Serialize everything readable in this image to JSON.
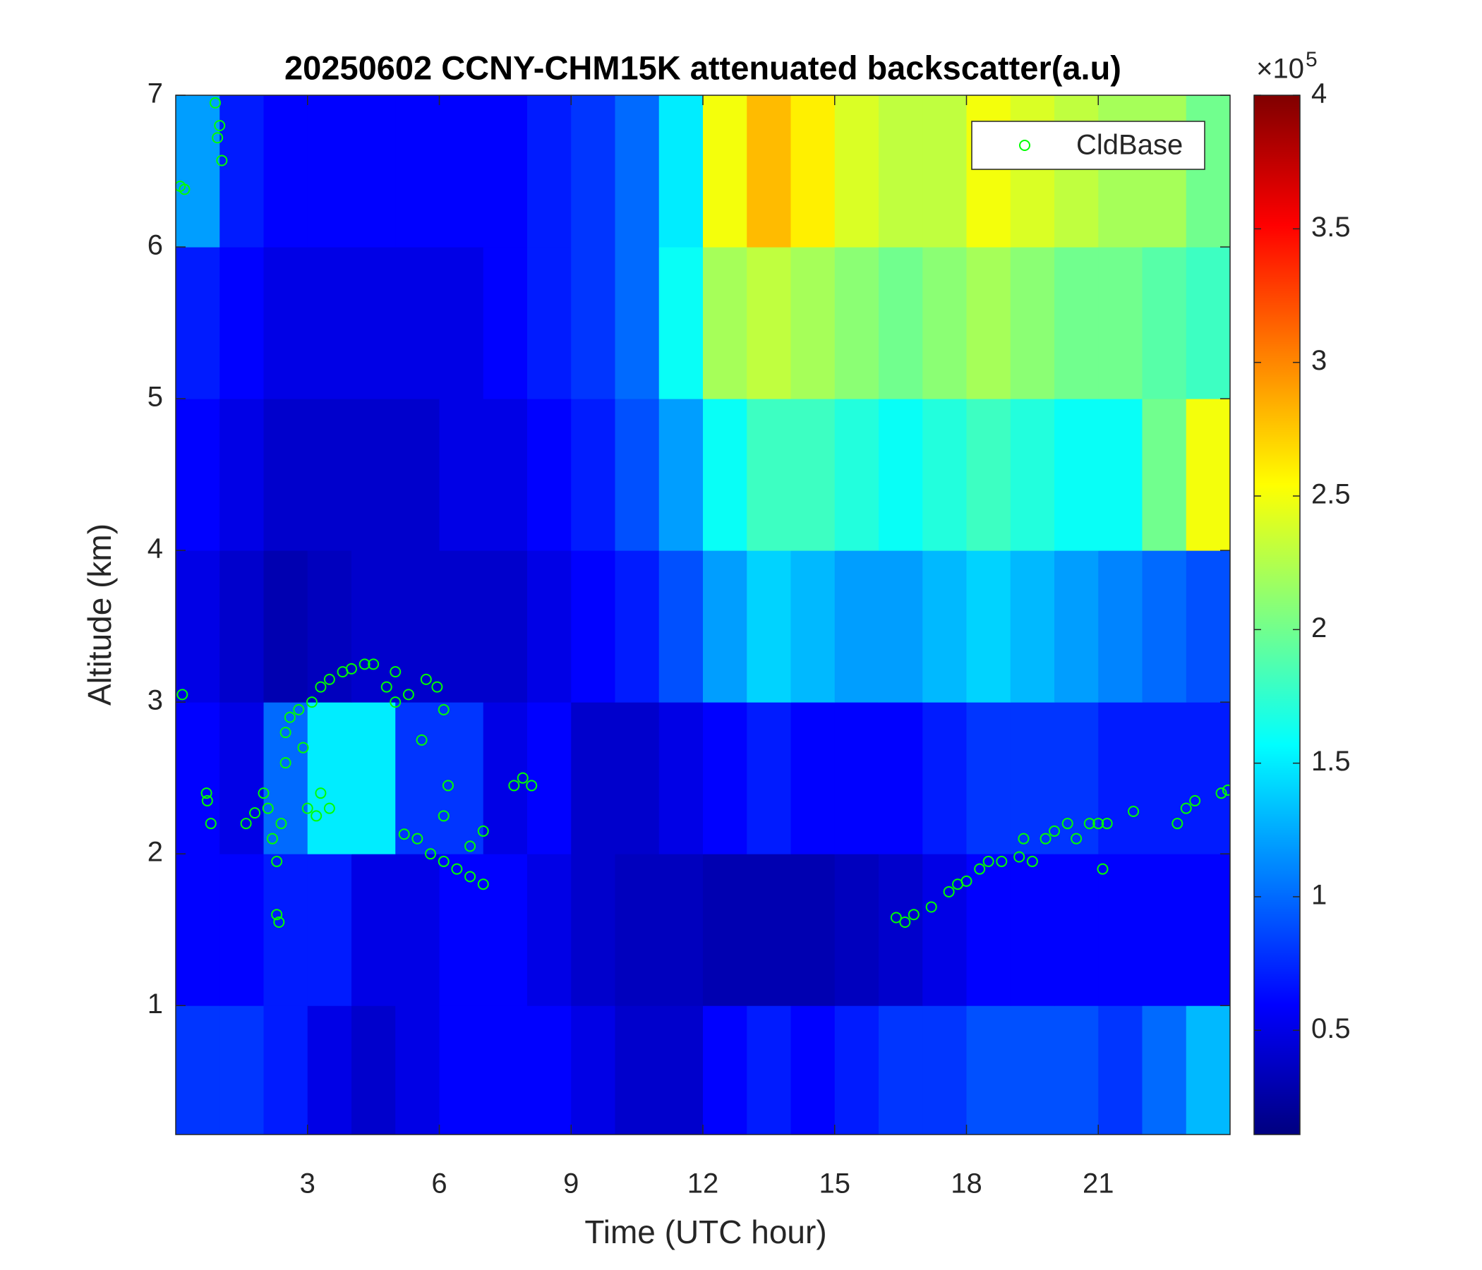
{
  "chart_data": {
    "type": "heatmap",
    "title": "20250602 CCNY-CHM15K attenuated backscatter(a.u)",
    "x_label": "Time (UTC hour)",
    "y_label": "Altitude (km)",
    "colormap": "jet",
    "x": [
      0.5,
      1.5,
      2.5,
      3.5,
      4.5,
      5.5,
      6.5,
      7.5,
      8.5,
      9.5,
      10.5,
      11.5,
      12.5,
      13.5,
      14.5,
      15.5,
      16.5,
      17.5,
      18.5,
      19.5,
      20.5,
      21.5,
      22.5,
      23.5
    ],
    "y": [
      0.5,
      1.5,
      2.5,
      3.5,
      4.5,
      5.5,
      6.5
    ],
    "z": [
      [
        0.8,
        0.8,
        0.7,
        0.5,
        0.4,
        0.5,
        0.6,
        0.6,
        0.6,
        0.5,
        0.4,
        0.4,
        0.6,
        0.7,
        0.6,
        0.7,
        0.8,
        0.8,
        0.9,
        0.9,
        0.9,
        0.8,
        1.0,
        1.3
      ],
      [
        0.6,
        0.6,
        0.7,
        0.7,
        0.5,
        0.5,
        0.6,
        0.6,
        0.5,
        0.4,
        0.35,
        0.35,
        0.3,
        0.3,
        0.3,
        0.35,
        0.4,
        0.5,
        0.6,
        0.6,
        0.6,
        0.6,
        0.6,
        0.6
      ],
      [
        0.6,
        0.5,
        1.0,
        1.5,
        1.5,
        0.8,
        0.8,
        0.5,
        0.6,
        0.4,
        0.4,
        0.5,
        0.6,
        0.7,
        0.6,
        0.6,
        0.6,
        0.7,
        0.8,
        0.8,
        0.8,
        0.7,
        0.7,
        0.7
      ],
      [
        0.5,
        0.4,
        0.3,
        0.35,
        0.4,
        0.4,
        0.4,
        0.4,
        0.5,
        0.6,
        0.7,
        0.9,
        1.2,
        1.4,
        1.3,
        1.2,
        1.2,
        1.3,
        1.4,
        1.3,
        1.2,
        1.1,
        1.0,
        0.9
      ],
      [
        0.6,
        0.5,
        0.4,
        0.4,
        0.4,
        0.4,
        0.5,
        0.5,
        0.6,
        0.7,
        0.9,
        1.2,
        1.6,
        1.8,
        1.8,
        1.7,
        1.6,
        1.7,
        1.8,
        1.7,
        1.6,
        1.6,
        2.0,
        2.5
      ],
      [
        0.7,
        0.6,
        0.5,
        0.5,
        0.5,
        0.5,
        0.5,
        0.6,
        0.7,
        0.8,
        1.0,
        1.6,
        2.2,
        2.3,
        2.2,
        2.1,
        2.0,
        2.1,
        2.2,
        2.1,
        2.0,
        2.0,
        1.9,
        1.8
      ],
      [
        1.2,
        0.7,
        0.6,
        0.6,
        0.6,
        0.6,
        0.6,
        0.6,
        0.7,
        0.8,
        1.0,
        1.5,
        2.5,
        2.8,
        2.6,
        2.4,
        2.3,
        2.3,
        2.5,
        2.4,
        2.3,
        2.2,
        2.2,
        2.0
      ]
    ],
    "clim": [
      0.11,
      4
    ],
    "cticks": [
      0.5,
      1,
      1.5,
      2,
      2.5,
      3,
      3.5,
      4
    ],
    "cscale_label": "×10",
    "cscale_exponent": "5",
    "xlim": [
      0,
      24
    ],
    "ylim": [
      0.15,
      7
    ],
    "xticks": [
      3,
      6,
      9,
      12,
      15,
      18,
      21
    ],
    "yticks": [
      1,
      2,
      3,
      4,
      5,
      6,
      7
    ],
    "legend": "upper right",
    "overlay": {
      "type": "scatter",
      "name": "CldBase",
      "color": "#00ff00",
      "x": [
        0.1,
        0.2,
        0.9,
        1.0,
        0.95,
        1.05,
        0.15,
        0.7,
        0.72,
        0.8,
        1.6,
        1.8,
        2.0,
        2.1,
        2.2,
        2.3,
        2.3,
        2.35,
        2.4,
        2.5,
        2.5,
        2.6,
        2.8,
        2.9,
        3.0,
        3.2,
        3.3,
        3.5,
        3.1,
        3.3,
        3.5,
        3.8,
        4.0,
        4.3,
        4.5,
        4.8,
        5.0,
        5.0,
        5.3,
        5.7,
        5.95,
        6.1,
        5.6,
        6.2,
        6.1,
        5.2,
        5.5,
        5.8,
        6.1,
        6.4,
        6.7,
        7.0,
        6.7,
        7.0,
        7.7,
        7.9,
        8.1,
        16.4,
        16.6,
        16.8,
        17.2,
        17.6,
        17.8,
        18.0,
        18.3,
        18.5,
        18.8,
        19.2,
        19.3,
        19.5,
        19.8,
        20.0,
        20.3,
        20.5,
        20.8,
        21.0,
        21.2,
        21.1,
        21.8,
        22.8,
        23.0,
        23.2,
        23.8,
        23.95
      ],
      "y": [
        6.4,
        6.38,
        6.95,
        6.8,
        6.72,
        6.57,
        3.05,
        2.4,
        2.35,
        2.2,
        2.2,
        2.27,
        2.4,
        2.3,
        2.1,
        1.95,
        1.6,
        1.55,
        2.2,
        2.6,
        2.8,
        2.9,
        2.95,
        2.7,
        2.3,
        2.25,
        2.4,
        2.3,
        3.0,
        3.1,
        3.15,
        3.2,
        3.22,
        3.25,
        3.25,
        3.1,
        3.0,
        3.2,
        3.05,
        3.15,
        3.1,
        2.95,
        2.75,
        2.45,
        2.25,
        2.13,
        2.1,
        2.0,
        1.95,
        1.9,
        1.85,
        1.8,
        2.05,
        2.15,
        2.45,
        2.5,
        2.45,
        1.58,
        1.55,
        1.6,
        1.65,
        1.75,
        1.8,
        1.82,
        1.9,
        1.95,
        1.95,
        1.98,
        2.1,
        1.95,
        2.1,
        2.15,
        2.2,
        2.1,
        2.2,
        2.2,
        2.2,
        1.9,
        2.28,
        2.2,
        2.3,
        2.35,
        2.4,
        2.42
      ]
    }
  }
}
